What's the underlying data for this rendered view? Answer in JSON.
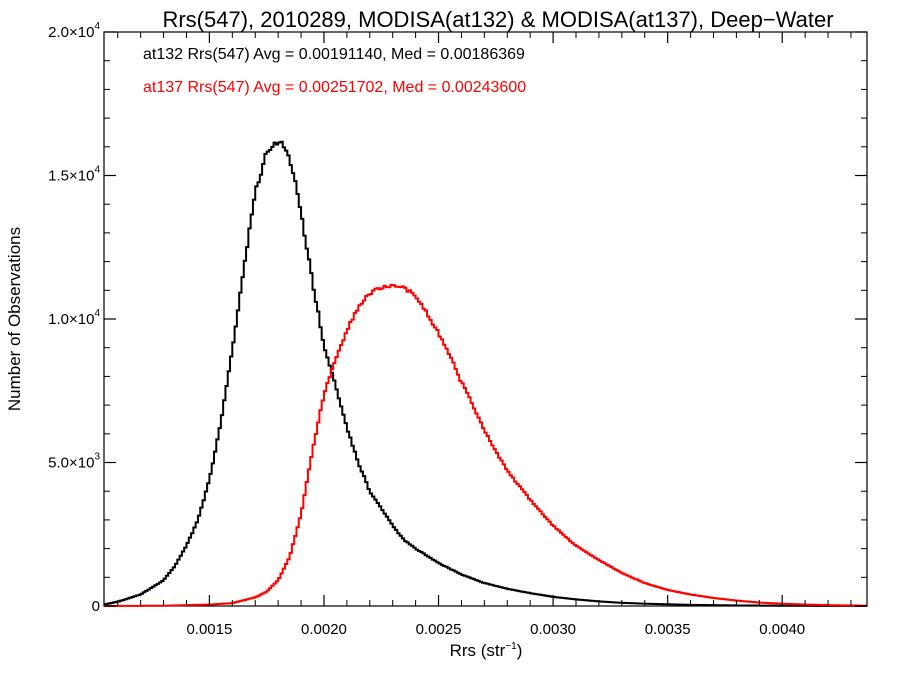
{
  "chart_data": {
    "type": "line",
    "title": "Rrs(547), 2010289, MODISA(at132) & MODISA(at137), Deep−Water",
    "xlabel": {
      "base": "Rrs (str",
      "sup": "−1",
      "tail": ")"
    },
    "ylabel": "Number of Observations",
    "xlim": [
      0.00104,
      0.00437
    ],
    "ylim": [
      0,
      20000
    ],
    "x_ticks": [
      {
        "value": 0.0015,
        "label": "0.0015"
      },
      {
        "value": 0.002,
        "label": "0.0020"
      },
      {
        "value": 0.0025,
        "label": "0.0025"
      },
      {
        "value": 0.003,
        "label": "0.0030"
      },
      {
        "value": 0.0035,
        "label": "0.0035"
      },
      {
        "value": 0.004,
        "label": "0.0040"
      }
    ],
    "y_ticks": [
      {
        "value": 0,
        "label": "0",
        "sup": ""
      },
      {
        "value": 5000,
        "label": "5.0×10",
        "sup": "3"
      },
      {
        "value": 10000,
        "label": "1.0×10",
        "sup": "4"
      },
      {
        "value": 15000,
        "label": "1.5×10",
        "sup": "4"
      },
      {
        "value": 20000,
        "label": "2.0×10",
        "sup": "4"
      }
    ],
    "annotations": [
      {
        "text": "at132 Rrs(547) Avg = 0.00191140, Med = 0.00186369",
        "color": "#000000"
      },
      {
        "text": "at137 Rrs(547) Avg = 0.00251702, Med = 0.00243600",
        "color": "#ff0000"
      }
    ],
    "series": [
      {
        "color": "#000000",
        "x": [
          0.00104,
          0.0011,
          0.0012,
          0.0013,
          0.00135,
          0.0014,
          0.00145,
          0.0015,
          0.00155,
          0.0016,
          0.00165,
          0.0017,
          0.00175,
          0.00178,
          0.0018,
          0.00182,
          0.00185,
          0.00188,
          0.0019,
          0.00195,
          0.002,
          0.00205,
          0.0021,
          0.00215,
          0.0022,
          0.00225,
          0.0023,
          0.00235,
          0.0024,
          0.0025,
          0.0026,
          0.0027,
          0.0028,
          0.0029,
          0.003,
          0.0031,
          0.0032,
          0.0033,
          0.0034,
          0.0036,
          0.0038,
          0.004,
          0.0042,
          0.00437
        ],
        "y": [
          50,
          150,
          400,
          900,
          1400,
          2100,
          3000,
          4400,
          6400,
          8900,
          11800,
          14400,
          15800,
          16100,
          16200,
          16100,
          15600,
          14600,
          13700,
          11300,
          9100,
          7700,
          6200,
          5000,
          4000,
          3400,
          2800,
          2300,
          2000,
          1500,
          1100,
          800,
          600,
          450,
          320,
          230,
          160,
          110,
          80,
          40,
          20,
          10,
          5,
          2
        ]
      },
      {
        "color": "#ff0000",
        "x": [
          0.00104,
          0.0013,
          0.0015,
          0.0016,
          0.0017,
          0.00175,
          0.0018,
          0.00185,
          0.0019,
          0.00195,
          0.002,
          0.00205,
          0.0021,
          0.00215,
          0.0022,
          0.00225,
          0.0023,
          0.00235,
          0.0024,
          0.00245,
          0.0025,
          0.00255,
          0.0026,
          0.00265,
          0.0027,
          0.00275,
          0.0028,
          0.0029,
          0.003,
          0.0031,
          0.0032,
          0.0033,
          0.0034,
          0.0035,
          0.0036,
          0.0037,
          0.0038,
          0.0039,
          0.004,
          0.0041,
          0.0042,
          0.00437
        ],
        "y": [
          0,
          10,
          50,
          100,
          300,
          500,
          900,
          1700,
          3200,
          5400,
          7400,
          8600,
          9600,
          10400,
          10900,
          11100,
          11200,
          11100,
          10800,
          10200,
          9500,
          8700,
          7800,
          7000,
          6100,
          5400,
          4700,
          3700,
          2800,
          2100,
          1600,
          1150,
          800,
          560,
          400,
          280,
          190,
          120,
          80,
          50,
          30,
          10
        ]
      }
    ]
  }
}
